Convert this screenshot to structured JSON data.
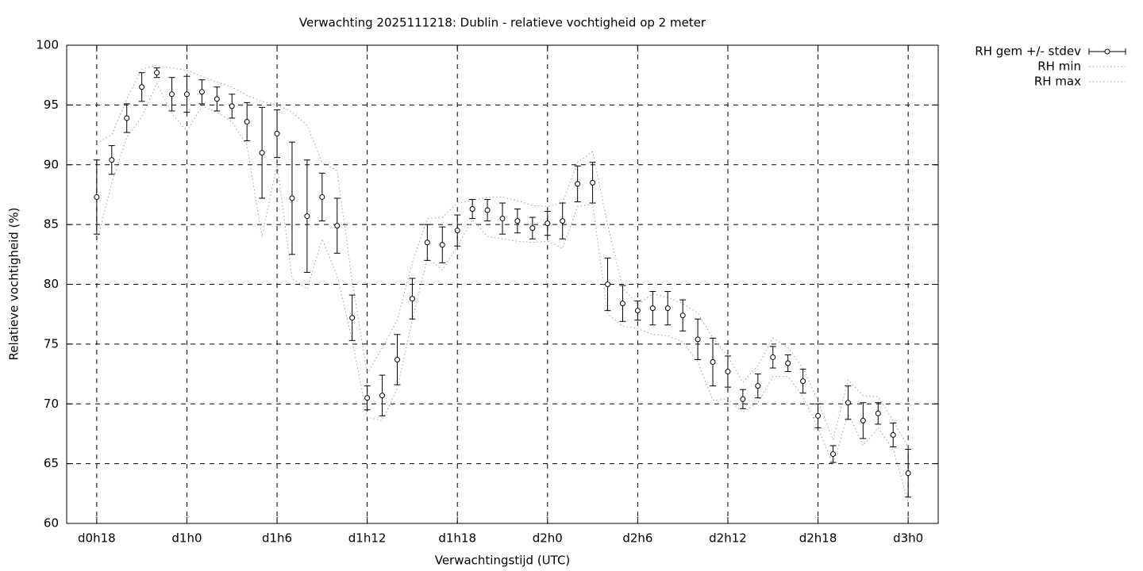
{
  "chart_data": {
    "type": "errorbar-line",
    "title": "Verwachting 2025111218: Dublin - relatieve vochtigheid op 2 meter",
    "xlabel": "Verwachtingstijd (UTC)",
    "ylabel": "Relatieve vochtigheid (%)",
    "x": [
      18,
      19,
      20,
      21,
      22,
      23,
      24,
      25,
      26,
      27,
      28,
      29,
      30,
      31,
      32,
      33,
      34,
      35,
      36,
      37,
      38,
      39,
      40,
      41,
      42,
      43,
      44,
      45,
      46,
      47,
      48,
      49,
      50,
      51,
      52,
      53,
      54,
      55,
      56,
      57,
      58,
      59,
      60,
      61,
      62,
      63,
      64,
      65,
      66,
      67,
      68,
      69,
      70,
      71,
      72
    ],
    "xlim": [
      16,
      74
    ],
    "xticks": [
      {
        "value": 18,
        "label": "d0h18"
      },
      {
        "value": 24,
        "label": "d1h0"
      },
      {
        "value": 30,
        "label": "d1h6"
      },
      {
        "value": 36,
        "label": "d1h12"
      },
      {
        "value": 42,
        "label": "d1h18"
      },
      {
        "value": 48,
        "label": "d2h0"
      },
      {
        "value": 54,
        "label": "d2h6"
      },
      {
        "value": 60,
        "label": "d2h12"
      },
      {
        "value": 66,
        "label": "d2h18"
      },
      {
        "value": 72,
        "label": "d3h0"
      }
    ],
    "ylim": [
      60,
      100
    ],
    "yticks": [
      60,
      65,
      70,
      75,
      80,
      85,
      90,
      95,
      100
    ],
    "grid": true,
    "legend": "outside-top-right",
    "series": [
      {
        "name": "RH gem +/- stdev",
        "color": "#000000",
        "values": [
          87.3,
          90.4,
          93.9,
          96.5,
          97.7,
          95.9,
          95.9,
          96.1,
          95.5,
          94.9,
          93.6,
          91.0,
          92.6,
          87.2,
          85.7,
          87.3,
          84.9,
          77.2,
          70.5,
          70.7,
          73.7,
          78.8,
          83.5,
          83.3,
          84.5,
          86.3,
          86.2,
          85.5,
          85.3,
          84.7,
          85.1,
          85.3,
          88.4,
          88.5,
          80.0,
          78.4,
          77.8,
          78.0,
          78.0,
          77.4,
          75.4,
          73.5,
          72.7,
          70.4,
          71.5,
          73.9,
          73.4,
          71.9,
          69.0,
          65.8,
          70.1,
          68.6,
          69.2,
          67.4,
          64.2
        ],
        "errors": [
          3.1,
          1.2,
          1.2,
          1.2,
          0.4,
          1.4,
          1.5,
          1.0,
          1.0,
          1.0,
          1.6,
          3.8,
          2.0,
          4.7,
          4.7,
          2.0,
          2.3,
          1.9,
          1.0,
          1.7,
          2.1,
          1.7,
          1.5,
          1.5,
          1.3,
          0.8,
          0.9,
          1.3,
          1.0,
          0.9,
          1.0,
          1.5,
          1.5,
          1.7,
          2.2,
          1.5,
          0.8,
          1.4,
          1.4,
          1.3,
          1.7,
          2.0,
          1.3,
          0.8,
          1.0,
          0.9,
          0.7,
          1.0,
          1.0,
          0.7,
          1.4,
          1.5,
          0.9,
          1.0,
          2.0
        ]
      },
      {
        "name": "RH min",
        "color": "#a0a0a0",
        "values": [
          83.5,
          88.5,
          92.3,
          94.0,
          96.8,
          94.3,
          92.8,
          94.9,
          94.4,
          93.6,
          91.6,
          84.0,
          90.1,
          80.5,
          79.6,
          83.8,
          80.7,
          75.3,
          68.9,
          68.6,
          71.3,
          77.0,
          82.2,
          81.2,
          83.2,
          85.4,
          84.0,
          83.8,
          83.6,
          83.5,
          83.6,
          83.0,
          86.5,
          86.7,
          77.5,
          76.5,
          76.3,
          75.8,
          75.7,
          75.2,
          73.5,
          70.3,
          70.4,
          69.3,
          70.1,
          72.3,
          72.3,
          70.6,
          68.0,
          64.9,
          69.2,
          66.5,
          68.0,
          66.2,
          61.8
        ]
      },
      {
        "name": "RH max",
        "color": "#a0a0a0",
        "values": [
          91.8,
          92.5,
          95.5,
          98.0,
          98.3,
          98.1,
          97.9,
          97.4,
          96.9,
          96.5,
          95.8,
          95.3,
          95.0,
          94.4,
          93.3,
          90.2,
          89.5,
          80.3,
          72.5,
          74.7,
          77.0,
          81.8,
          85.5,
          85.6,
          86.8,
          87.0,
          87.3,
          87.3,
          87.0,
          86.6,
          86.5,
          86.8,
          90.2,
          91.1,
          85.0,
          79.7,
          78.3,
          79.2,
          78.9,
          78.4,
          77.6,
          75.5,
          74.0,
          71.8,
          73.2,
          75.5,
          74.7,
          73.0,
          70.2,
          67.0,
          72.0,
          70.7,
          70.6,
          68.6,
          66.4
        ]
      }
    ]
  }
}
